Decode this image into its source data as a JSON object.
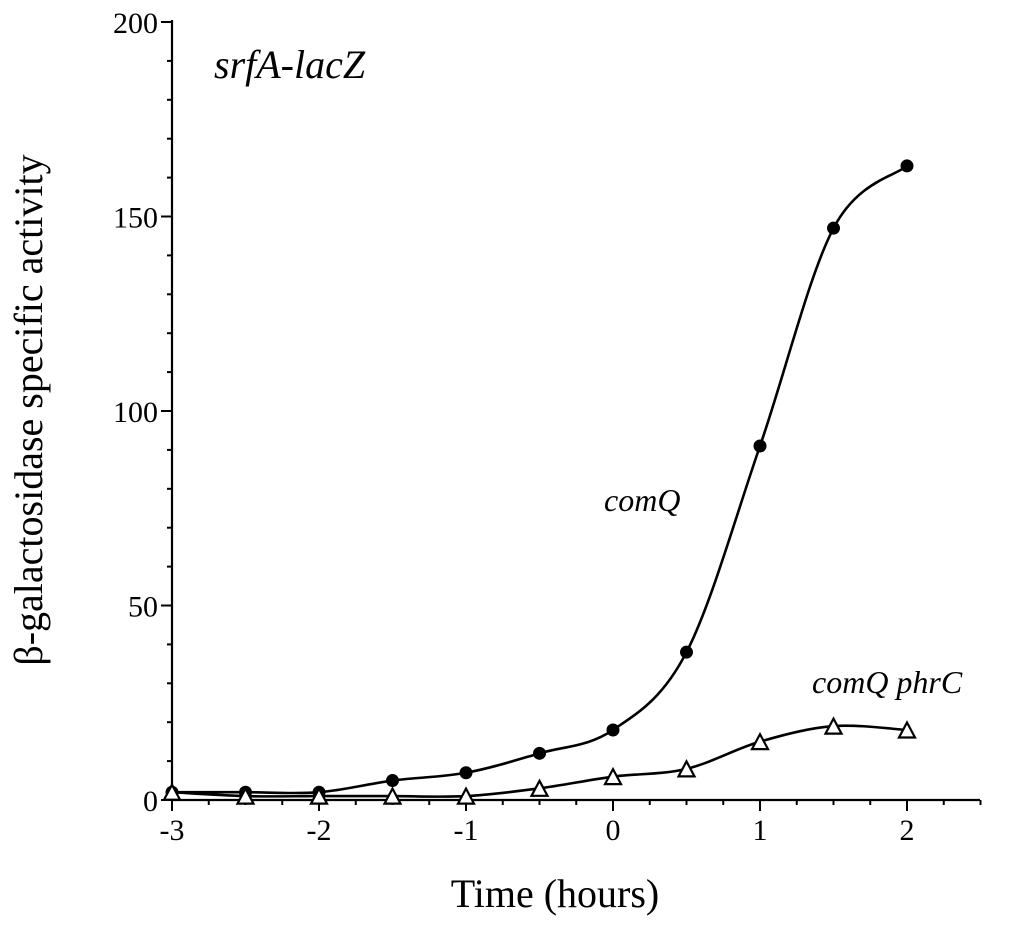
{
  "chart_data": {
    "type": "line",
    "annotations": [
      "srfA-lacZ"
    ],
    "xlabel": "Time (hours)",
    "ylabel": "β-galactosidase specific activity",
    "xlim": [
      -3,
      2.5
    ],
    "ylim": [
      0,
      200
    ],
    "x_ticks": [
      "-3",
      "-2",
      "-1",
      "0",
      "1",
      "2"
    ],
    "x_tick_values": [
      -3,
      -2,
      -1,
      0,
      1,
      2
    ],
    "y_ticks": [
      "0",
      "50",
      "100",
      "150",
      "200"
    ],
    "y_tick_values": [
      0,
      50,
      100,
      150,
      200
    ],
    "grid": false,
    "legend": "none",
    "series": [
      {
        "name": "comQ",
        "marker": "filled-circle",
        "x": [
          -3,
          -2.5,
          -2,
          -1.5,
          -1,
          -0.5,
          0,
          0.5,
          1,
          1.5,
          2
        ],
        "y": [
          2,
          2,
          2,
          5,
          7,
          12,
          18,
          38,
          91,
          147,
          163
        ]
      },
      {
        "name": "comQ phrC",
        "marker": "open-triangle",
        "x": [
          -3,
          -2.5,
          -2,
          -1.5,
          -1,
          -0.5,
          0,
          0.5,
          1,
          1.5,
          2
        ],
        "y": [
          2,
          1,
          1,
          1,
          1,
          3,
          6,
          8,
          15,
          19,
          18
        ]
      }
    ]
  }
}
